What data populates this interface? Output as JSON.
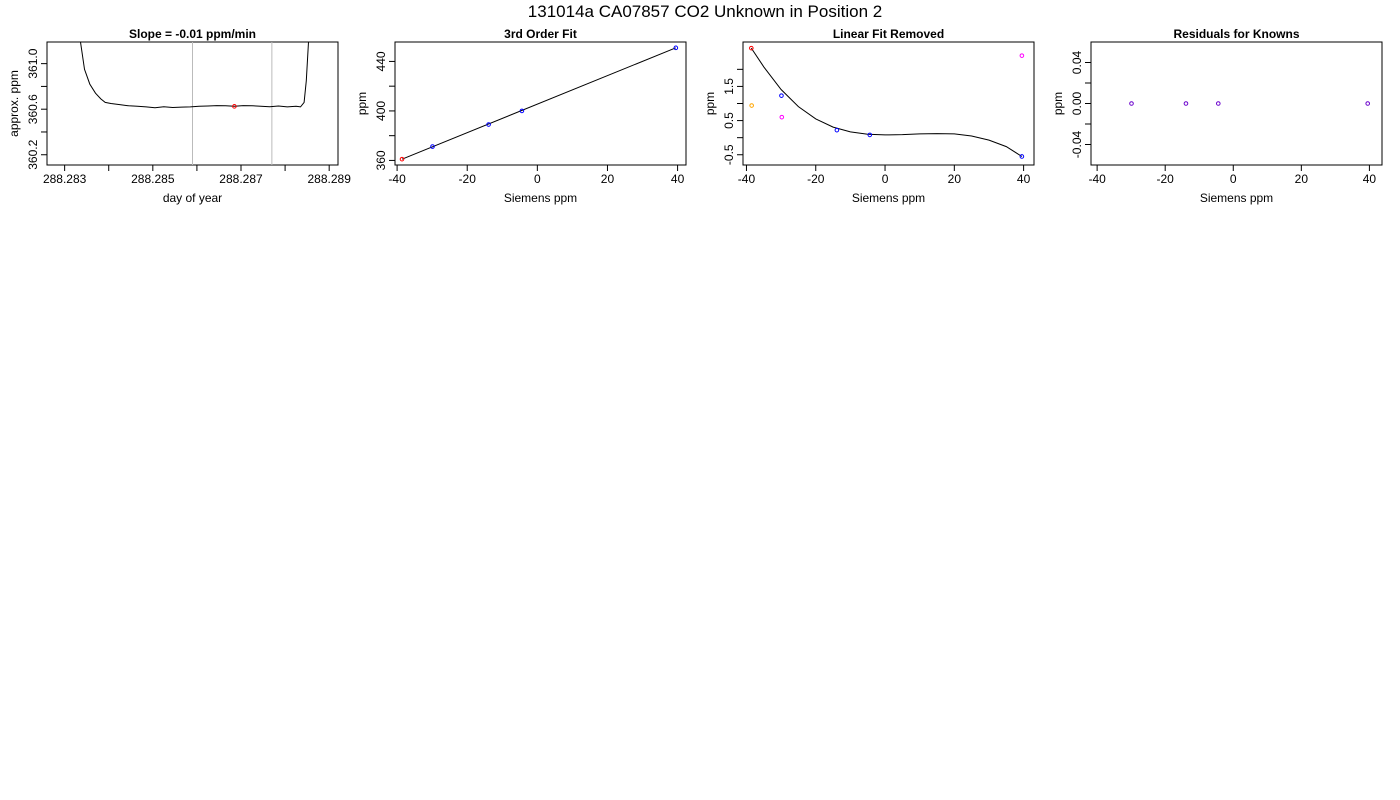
{
  "figure": {
    "title": "131014a     CA07857   CO2 Unknown in Position  2"
  },
  "chart_data": [
    {
      "type": "line",
      "title": "Slope =  -0.01  ppm/min",
      "xlabel": "day of year",
      "ylabel": "approx. ppm",
      "xlim": [
        288.2826,
        288.2892
      ],
      "ylim": [
        360.11,
        361.19
      ],
      "xticks": [
        "288.283",
        "288.285",
        "288.287",
        "288.289"
      ],
      "xtick_values": [
        288.283,
        288.285,
        288.287,
        288.289
      ],
      "xminor_ticks": [
        288.284,
        288.286,
        288.288
      ],
      "yticks": [
        "360.2",
        "360.6",
        "361.0"
      ],
      "ytick_values": [
        360.2,
        360.6,
        361.0
      ],
      "yminor_ticks": [
        360.4,
        360.8
      ],
      "vlines": [
        288.2859,
        288.2877
      ],
      "vline_color": "#bbbbbb",
      "highlight_point": {
        "x": 288.28685,
        "y": 360.625,
        "color": "#ff0000"
      },
      "series": [
        {
          "color": "#000000",
          "points": [
            [
              288.28336,
              361.19
            ],
            [
              288.28345,
              360.95
            ],
            [
              288.28357,
              360.82
            ],
            [
              288.2837,
              360.74
            ],
            [
              288.28382,
              360.69
            ],
            [
              288.28392,
              360.66
            ],
            [
              288.28405,
              360.65
            ],
            [
              288.28425,
              360.64
            ],
            [
              288.28445,
              360.63
            ],
            [
              288.28465,
              360.625
            ],
            [
              288.28485,
              360.62
            ],
            [
              288.28505,
              360.612
            ],
            [
              288.28525,
              360.622
            ],
            [
              288.28545,
              360.615
            ],
            [
              288.28565,
              360.618
            ],
            [
              288.28585,
              360.62
            ],
            [
              288.28605,
              360.625
            ],
            [
              288.28625,
              360.628
            ],
            [
              288.28645,
              360.632
            ],
            [
              288.28665,
              360.63
            ],
            [
              288.28685,
              360.625
            ],
            [
              288.28705,
              360.632
            ],
            [
              288.28725,
              360.63
            ],
            [
              288.28745,
              360.626
            ],
            [
              288.28765,
              360.622
            ],
            [
              288.28785,
              360.628
            ],
            [
              288.28805,
              360.62
            ],
            [
              288.28825,
              360.625
            ],
            [
              288.28835,
              360.62
            ],
            [
              288.28843,
              360.66
            ],
            [
              288.28848,
              360.85
            ],
            [
              288.28853,
              361.19
            ]
          ]
        }
      ]
    },
    {
      "type": "scatter",
      "title": "3rd Order Fit",
      "xlabel": "Siemens ppm",
      "ylabel": "ppm",
      "xlim": [
        -40.6,
        42.4
      ],
      "ylim": [
        356.3,
        455.7
      ],
      "xticks": [
        "-40",
        "-20",
        "0",
        "20",
        "40"
      ],
      "xtick_values": [
        -40,
        -20,
        0,
        20,
        40
      ],
      "yticks": [
        "360",
        "400",
        "440"
      ],
      "ytick_values": [
        360,
        400,
        440
      ],
      "yminor_ticks": [
        380,
        420
      ],
      "fit_line": [
        [
          -38.6,
          361.0
        ],
        [
          39.5,
          451.0
        ]
      ],
      "series": [
        {
          "color": "#0000ff",
          "points": [
            [
              -29.9,
              371.2
            ],
            [
              -13.9,
              389.0
            ],
            [
              -4.4,
              400.0
            ],
            [
              39.5,
              451.0
            ]
          ]
        },
        {
          "color": "#ff0000",
          "points": [
            [
              -38.6,
              361.0
            ]
          ]
        }
      ]
    },
    {
      "type": "scatter",
      "title": "Linear Fit Removed",
      "xlabel": "Siemens ppm",
      "ylabel": "ppm",
      "xlim": [
        -41.0,
        43.0
      ],
      "ylim": [
        -0.8,
        2.8
      ],
      "xticks": [
        "-40",
        "-20",
        "0",
        "20",
        "40"
      ],
      "xtick_values": [
        -40,
        -20,
        0,
        20,
        40
      ],
      "yticks": [
        "-0.5",
        "0.5",
        "1.5"
      ],
      "ytick_values": [
        -0.5,
        0.5,
        1.5
      ],
      "yminor_ticks": [
        0.0,
        1.0,
        2.0
      ],
      "fit_curve": [
        [
          -38.6,
          2.62
        ],
        [
          -35,
          2.07
        ],
        [
          -30,
          1.41
        ],
        [
          -25,
          0.91
        ],
        [
          -20,
          0.55
        ],
        [
          -15,
          0.31
        ],
        [
          -10,
          0.17
        ],
        [
          -5,
          0.1
        ],
        [
          0,
          0.08
        ],
        [
          5,
          0.09
        ],
        [
          10,
          0.11
        ],
        [
          15,
          0.12
        ],
        [
          20,
          0.11
        ],
        [
          25,
          0.05
        ],
        [
          30,
          -0.07
        ],
        [
          35,
          -0.26
        ],
        [
          39.5,
          -0.55
        ]
      ],
      "series": [
        {
          "color": "#0000ff",
          "points": [
            [
              -29.9,
              1.23
            ],
            [
              -13.9,
              0.22
            ],
            [
              -4.4,
              0.08
            ],
            [
              39.5,
              -0.55
            ]
          ]
        },
        {
          "color": "#ff0000",
          "points": [
            [
              -38.6,
              2.62
            ]
          ]
        },
        {
          "color": "#ff00ff",
          "points": [
            [
              -29.8,
              0.6
            ],
            [
              39.5,
              2.4
            ]
          ]
        },
        {
          "color": "#ffa500",
          "points": [
            [
              -38.5,
              0.94
            ]
          ]
        }
      ]
    },
    {
      "type": "scatter",
      "title": "Residuals for Knowns",
      "xlabel": "Siemens ppm",
      "ylabel": "ppm",
      "xlim": [
        -41.8,
        43.7
      ],
      "ylim": [
        -0.06,
        0.06
      ],
      "xticks": [
        "-40",
        "-20",
        "0",
        "20",
        "40"
      ],
      "xtick_values": [
        -40,
        -20,
        0,
        20,
        40
      ],
      "yticks": [
        "-0.04",
        "0.00",
        "0.04"
      ],
      "ytick_values": [
        -0.04,
        0.0,
        0.04
      ],
      "yminor_ticks": [
        -0.02,
        0.02
      ],
      "series": [
        {
          "color": "#6a00cc",
          "points": [
            [
              -29.9,
              0.0
            ],
            [
              -13.9,
              0.0
            ],
            [
              -4.4,
              0.0
            ],
            [
              39.5,
              0.0
            ]
          ]
        }
      ]
    }
  ]
}
